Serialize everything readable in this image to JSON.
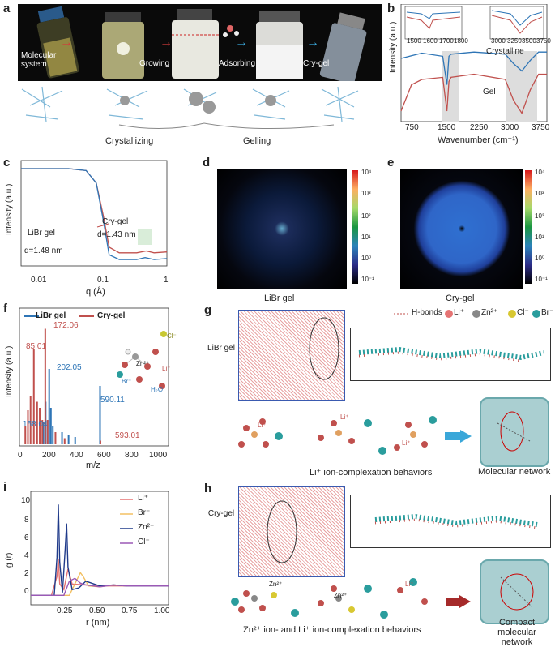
{
  "panels": {
    "a": {
      "letter": "a",
      "photo_labels": [
        "Molecular system",
        "Growing",
        "Adsorbing",
        "Cry-gel"
      ],
      "stage_labels": [
        "Crystallizing",
        "Gelling"
      ]
    },
    "b": {
      "letter": "b",
      "ylabel": "Intensity (a.u.)",
      "xlabel": "Wavenumber (cm⁻¹)",
      "series_labels": [
        "Crystalline",
        "Gel"
      ],
      "xticks": [
        "750",
        "1500",
        "2250",
        "3000",
        "3750"
      ],
      "inset1_ticks": [
        "1500",
        "1600",
        "1700",
        "1800"
      ],
      "inset2_ticks": [
        "3000",
        "3250",
        "3500",
        "3750"
      ]
    },
    "c": {
      "letter": "c",
      "ylabel": "Intensity (a.u.)",
      "xlabel": "q (Å)",
      "xticks": [
        "0.01",
        "0.1",
        "1"
      ],
      "annotations": [
        "Cry-gel",
        "d=1.43 nm",
        "LiBr gel",
        "d=1.48 nm"
      ]
    },
    "d": {
      "letter": "d",
      "caption": "LiBr gel",
      "colorbar": [
        "10⁴",
        "10³",
        "10²",
        "10¹",
        "10⁰",
        "10⁻¹"
      ]
    },
    "e": {
      "letter": "e",
      "caption": "Cry-gel",
      "colorbar": [
        "10⁴",
        "10³",
        "10²",
        "10¹",
        "10⁰",
        "10⁻¹"
      ]
    },
    "f": {
      "letter": "f",
      "ylabel": "Intensity (a.u.)",
      "xlabel": "m/z",
      "legend": [
        "LiBr gel",
        "Cry-gel"
      ],
      "xticks": [
        "0",
        "200",
        "400",
        "600",
        "800",
        "1000"
      ],
      "peak_labels": [
        "172.06",
        "85.01",
        "202.05",
        "590.11",
        "158.04",
        "593.01"
      ],
      "molecule_labels": [
        "Cl⁻",
        "Zn²⁺",
        "Br⁻",
        "Li⁺",
        "H₂O"
      ]
    },
    "g": {
      "letter": "g",
      "side_label": "LiBr gel",
      "legend": [
        "H-bonds",
        "Li⁺",
        "Zn²⁺",
        "Cl⁻",
        "Br⁻"
      ],
      "caption_left": "Li⁺ ion-complexation behaviors",
      "caption_right": "Molecular network",
      "ion_labels": [
        "Li⁺",
        "Li⁺",
        "Li⁺"
      ]
    },
    "h": {
      "letter": "h",
      "side_label": "Cry-gel",
      "caption_left": "Zn²⁺ ion- and Li⁺ ion-complexation  behaviors",
      "caption_right": "Compact molecular network",
      "ion_labels": [
        "Zn²⁺",
        "Zn²⁺",
        "Li⁺"
      ]
    },
    "i": {
      "letter": "i",
      "ylabel": "g (r)",
      "xlabel": "r (nm)",
      "legend": [
        "Li⁺",
        "Br⁻",
        "Zn²⁺",
        "Cl⁻"
      ],
      "xticks": [
        "0.25",
        "0.50",
        "0.75",
        "1.00"
      ],
      "yticks": [
        "0",
        "2",
        "4",
        "6",
        "8",
        "10"
      ]
    }
  },
  "colors": {
    "libr": "#2e75b6",
    "crygel": "#c0504d",
    "br": "#f2c063",
    "cl": "#9b59b6",
    "zn": "#1f3a8a",
    "li": "#e57373"
  },
  "chart_data": [
    {
      "type": "line",
      "panel": "i",
      "xlabel": "r (nm)",
      "ylabel": "g (r)",
      "xlim": [
        0,
        1.0
      ],
      "ylim": [
        -1,
        11
      ],
      "series": [
        {
          "name": "Li⁺",
          "x": [
            0,
            0.15,
            0.19,
            0.2,
            0.21,
            0.24,
            0.27,
            0.3,
            0.4,
            0.5,
            0.7,
            1.0
          ],
          "y": [
            0,
            0,
            2,
            3.8,
            1.2,
            0.6,
            2.8,
            1.2,
            1.1,
            1.0,
            1.0,
            1.0
          ]
        },
        {
          "name": "Br⁻",
          "x": [
            0,
            0.28,
            0.32,
            0.36,
            0.38,
            0.42,
            0.5,
            0.6,
            0.7,
            1.0
          ],
          "y": [
            0,
            0,
            1.2,
            2.4,
            2.0,
            1.0,
            0.9,
            1.1,
            1.0,
            1.0
          ]
        },
        {
          "name": "Zn²⁺",
          "x": [
            0,
            0.17,
            0.19,
            0.2,
            0.21,
            0.23,
            0.25,
            0.26,
            0.27,
            0.3,
            0.35,
            0.4,
            0.5,
            0.6,
            0.7,
            1.0
          ],
          "y": [
            0,
            0,
            4,
            9.6,
            3.5,
            0.3,
            5,
            7.6,
            3,
            0.6,
            0.8,
            1.5,
            1.0,
            1.1,
            1.0,
            1.0
          ]
        },
        {
          "name": "Cl⁻",
          "x": [
            0,
            0.24,
            0.28,
            0.32,
            0.36,
            0.4,
            0.5,
            0.6,
            0.7,
            1.0
          ],
          "y": [
            0,
            0,
            1.5,
            1.8,
            1.3,
            1.1,
            0.9,
            1.1,
            1.0,
            1.0
          ]
        }
      ]
    },
    {
      "type": "line",
      "panel": "b",
      "xlabel": "Wavenumber (cm⁻¹)",
      "ylabel": "Intensity (a.u.)",
      "xlim": [
        500,
        4000
      ],
      "series": [
        {
          "name": "Crystalline",
          "x": [
            500,
            1000,
            1500,
            1600,
            1650,
            1700,
            2250,
            3000,
            3200,
            3400,
            3600,
            3800,
            4000
          ],
          "y": [
            0.6,
            0.65,
            0.62,
            0.35,
            0.62,
            0.64,
            0.66,
            0.64,
            0.55,
            0.48,
            0.58,
            0.66,
            0.66
          ]
        },
        {
          "name": "Gel",
          "x": [
            500,
            750,
            1000,
            1500,
            1600,
            1650,
            1700,
            2250,
            3000,
            3200,
            3400,
            3600,
            3800,
            4000
          ],
          "y": [
            0.1,
            0.35,
            0.4,
            0.42,
            0.1,
            0.38,
            0.42,
            0.45,
            0.4,
            0.2,
            0.08,
            0.3,
            0.45,
            0.45
          ]
        }
      ]
    },
    {
      "type": "line",
      "panel": "c",
      "xlabel": "q (Å)",
      "ylabel": "Intensity (a.u.)",
      "series": [
        {
          "name": "Cry-gel",
          "x": [
            0.003,
            0.02,
            0.04,
            0.06,
            0.08,
            0.1,
            0.15,
            0.3,
            0.44,
            0.6,
            1
          ],
          "y": [
            1,
            1,
            0.98,
            0.85,
            0.5,
            0.18,
            0.12,
            0.12,
            0.14,
            0.12,
            0.13
          ]
        },
        {
          "name": "LiBr gel",
          "x": [
            0.003,
            0.02,
            0.04,
            0.06,
            0.08,
            0.1,
            0.15,
            0.3,
            0.42,
            0.6,
            1
          ],
          "y": [
            1,
            1,
            0.98,
            0.85,
            0.45,
            0.1,
            0.05,
            0.05,
            0.07,
            0.05,
            0.06
          ]
        }
      ]
    },
    {
      "type": "bar",
      "panel": "f",
      "xlabel": "m/z",
      "ylabel": "Intensity (a.u.)",
      "series": [
        {
          "name": "LiBr gel",
          "x": [
            158.04,
            175,
            202.05,
            215,
            230,
            300,
            350,
            400,
            590.11
          ],
          "values": [
            0.18,
            0.35,
            0.62,
            0.3,
            0.15,
            0.1,
            0.08,
            0.06,
            0.48
          ]
        },
        {
          "name": "Cry-gel",
          "x": [
            20,
            40,
            60,
            85.01,
            110,
            130,
            150,
            172.06,
            190,
            250,
            320,
            593.01
          ],
          "values": [
            0.15,
            0.28,
            0.4,
            0.78,
            0.35,
            0.3,
            0.2,
            0.95,
            0.2,
            0.1,
            0.05,
            0.03
          ]
        }
      ]
    }
  ]
}
